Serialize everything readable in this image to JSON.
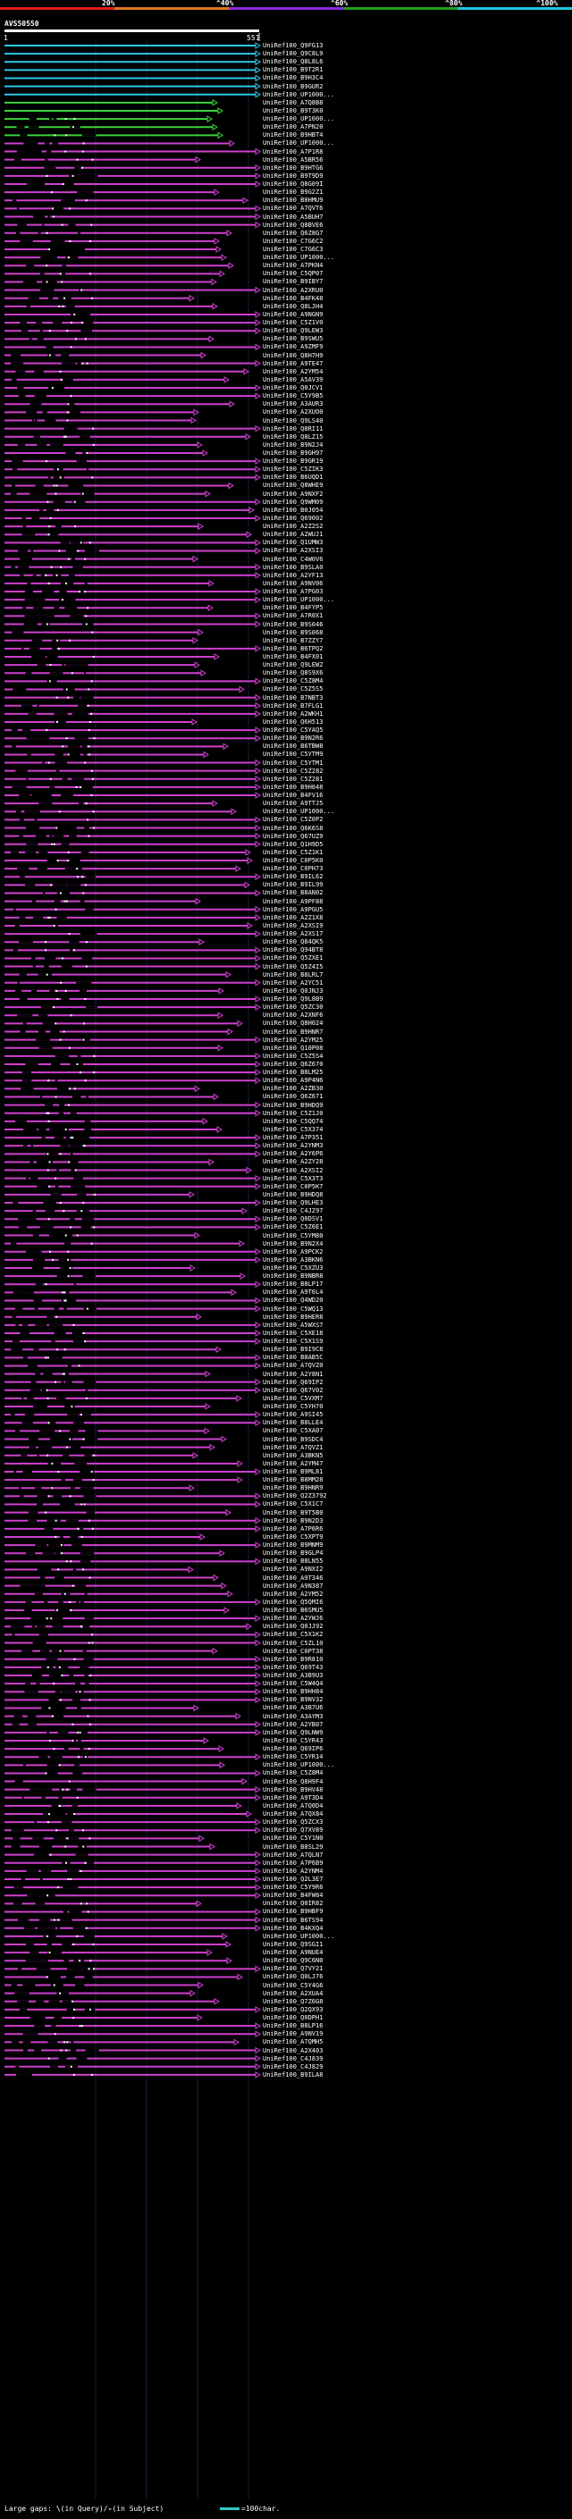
{
  "scale": {
    "ticks": [
      "20%",
      "^40%",
      "^60%",
      "^80%",
      "^100%"
    ],
    "colors": [
      "#e02020",
      "#e07820",
      "#8a2be2",
      "#20a020",
      "#1ec8e0"
    ]
  },
  "query": {
    "label": "AVS50550",
    "start": "1",
    "end": "551"
  },
  "colors": {
    "cyan": "#2ec8e8",
    "green": "#3cd23c",
    "magenta": "#d040d0",
    "dash": "#aaaaaa"
  },
  "hits": [
    "UniRef100_Q9FG13",
    "UniRef100_Q9C8L9",
    "UniRef100_Q8L8L6",
    "UniRef100_B9T2R1",
    "UniRef100_B9H3C4",
    "UniRef100_B9GUR2",
    "UniRef100_UP1000...",
    "UniRef100_A7Q8B8",
    "UniRef100_B9T3K0",
    "UniRef100_UP1000...",
    "UniRef100_A7PN20",
    "UniRef100_B9HBT4",
    "UniRef100_UP1000...",
    "UniRef100_A7P1R8",
    "UniRef100_A5BR56",
    "UniRef100_B9HTG6",
    "UniRef100_B9T9D9",
    "UniRef100_Q8G09I",
    "UniRef100_B9G2Z1",
    "UniRef100_B8HMU9",
    "UniRef100_A7QVT6",
    "UniRef100_A5BUH7",
    "UniRef100_Q8BVE6",
    "UniRef100_Q6Z8G7",
    "UniRef100_C7G6C2",
    "UniRef100_C7G6C3",
    "UniRef100_UP1000...",
    "UniRef100_A7PKN4",
    "UniRef100_C5QP07",
    "UniRef100_B9IBY7",
    "UniRef100_A2XRU0",
    "UniRef100_B4FK48",
    "UniRef100_Q8LJH4",
    "UniRef100_A9NGN9",
    "UniRef100_C5Z1V0",
    "UniRef100_Q9LEW3",
    "UniRef100_B9SWU5",
    "UniRef100_A9ZMF9",
    "UniRef100_Q8H7H9",
    "UniRef100_A9TE47",
    "UniRef100_A2YM54",
    "UniRef100_A5AV39",
    "UniRef100_Q0JCV1",
    "UniRef100_C5Y9B5",
    "UniRef100_A3AUR3",
    "UniRef100_A2XUO0",
    "UniRef100_Q9LS40",
    "UniRef100_Q8RI11",
    "UniRef100_Q8LZ15",
    "UniRef100_B9N2J4",
    "UniRef100_B9GH97",
    "UniRef100_B9GR19",
    "UniRef100_C5ZIK3",
    "UniRef100_B6UQD1",
    "UniRef100_Q8WHE9",
    "UniRef100_A9NXF2",
    "UniRef100_Q9WM09",
    "UniRef100_B0J054",
    "UniRef100_Q69002",
    "UniRef100_A2Z2S2",
    "UniRef100_A2WUJ1",
    "UniRef100_Q1UMW3",
    "UniRef100_A2XSI3",
    "UniRef100_C4W0V6",
    "UniRef100_B9SLA0",
    "UniRef100_A2YF13",
    "UniRef100_A9NV06",
    "UniRef100_A7PG03",
    "UniRef100_UP1000...",
    "UniRef100_B4FYP5",
    "UniRef100_A7R0X1",
    "UniRef100_B9S046",
    "UniRef100_B9S068",
    "UniRef100_B7ZZY7",
    "UniRef100_B6TPQ2",
    "UniRef100_B4FX01",
    "UniRef100_Q9LEW2",
    "UniRef100_Q8S9X6",
    "UniRef100_C5Z8M4",
    "UniRef100_C5Z5S5",
    "UniRef100_B7NBT3",
    "UniRef100_B7FLG1",
    "UniRef100_A2WKH1",
    "UniRef100_Q6H513",
    "UniRef100_C5YAQ5",
    "UniRef100_B9N2R6",
    "UniRef100_B6TBW8",
    "UniRef100_C5YTM9",
    "UniRef100_C5YTM1",
    "UniRef100_C5Z282",
    "UniRef100_C5Z281",
    "UniRef100_B9H048",
    "UniRef100_B4FV16",
    "UniRef100_A9TTJ5",
    "UniRef100_UP1000...",
    "UniRef100_C5Z0P2",
    "UniRef100_Q6K6S8",
    "UniRef100_Q67UZ9",
    "UniRef100_Q1H9D5",
    "UniRef100_C5Z1K1",
    "UniRef100_C0P5K0",
    "UniRef100_C0PH73",
    "UniRef100_B9IL62",
    "UniRef100_B9IL99",
    "UniRef100_B8AN02",
    "UniRef100_A9PF88",
    "UniRef100_A9PGU5",
    "UniRef100_A2Z1X8",
    "UniRef100_A2XSI9",
    "UniRef100_A2XS17",
    "UniRef100_Q84QK5",
    "UniRef100_Q94BT8",
    "UniRef100_Q5ZXE1",
    "UniRef100_Q5Z4I5",
    "UniRef100_B8LRL7",
    "UniRef100_A2YC51",
    "UniRef100_Q0JNJ3",
    "UniRef100_Q9L8B9",
    "UniRef100_Q5ZC30",
    "UniRef100_A2XNF6",
    "UniRef100_Q8H024",
    "UniRef100_B9HNR7",
    "UniRef100_A2YM25",
    "UniRef100_Q10P08",
    "UniRef100_C5Z5S4",
    "UniRef100_Q6Z670",
    "UniRef100_B8LM25",
    "UniRef100_A9P4N6",
    "UniRef100_A2ZB30",
    "UniRef100_Q6Z671",
    "UniRef100_B9HDQ9",
    "UniRef100_C5Z1J0",
    "UniRef100_C5QQ74",
    "UniRef100_C5X374",
    "UniRef100_A7P351",
    "UniRef100_A2YNM3",
    "UniRef100_A2Y6P6",
    "UniRef100_A2ZY28",
    "UniRef100_A2XSI2",
    "UniRef100_C5X3T3",
    "UniRef100_C0P5K7",
    "UniRef100_B9HDQ8",
    "UniRef100_Q9LHE3",
    "UniRef100_C4J297",
    "UniRef100_Q0DSV1",
    "UniRef100_C5Z6E1",
    "UniRef100_C5YM80",
    "UniRef100_B9N2X4",
    "UniRef100_A9PCK2",
    "UniRef100_A3BKN6",
    "UniRef100_C5XZU3",
    "UniRef100_B9NBR8",
    "UniRef100_B8LP17",
    "UniRef100_A9T6L4",
    "UniRef100_Q4WD20",
    "UniRef100_C5WQ13",
    "UniRef100_B9HER8",
    "UniRef100_A5WXS7",
    "UniRef100_C5XE18",
    "UniRef100_C5X1S9",
    "UniRef100_B9I9C8",
    "UniRef100_B8AB5C",
    "UniRef100_A7QVZ0",
    "UniRef100_A2Y8N1",
    "UniRef100_Q69IP2",
    "UniRef100_Q67V02",
    "UniRef100_C5VXM7",
    "UniRef100_C5YH70",
    "UniRef100_A9SI45",
    "UniRef100_B8LLE4",
    "UniRef100_C5XA07",
    "UniRef100_B9SDC4",
    "UniRef100_A7QVZ1",
    "UniRef100_A3BKN5",
    "UniRef100_A2YM47",
    "UniRef100_B9ML81",
    "UniRef100_B8MM28",
    "UniRef100_B9HNR9",
    "UniRef100_Q2Z3792",
    "UniRef100_C5X1C7",
    "UniRef100_B9T5B0",
    "UniRef100_B9N2D3",
    "UniRef100_A7P6R6",
    "UniRef100_C5XPT9",
    "UniRef100_B9MNM9",
    "UniRef100_B9GLP4",
    "UniRef100_B8LN55",
    "UniRef100_A9NXI2",
    "UniRef100_A9T346",
    "UniRef100_A9N387",
    "UniRef100_A2YM52",
    "UniRef100_Q5QMI6",
    "UniRef100_B6SMU5",
    "UniRef100_A2YWJ6",
    "UniRef100_Q0JJ92",
    "UniRef100_C5X1K2",
    "UniRef100_C5ZL10",
    "UniRef100_C0PT38",
    "UniRef100_B9R810",
    "UniRef100_Q69T43",
    "UniRef100_A3B9U3",
    "UniRef100_C5W4Q4",
    "UniRef100_B9HH84",
    "UniRef100_B9NV32",
    "UniRef100_A3B7U6",
    "UniRef100_A3AYM3",
    "UniRef100_A2YB07",
    "UniRef100_Q9LNW9",
    "UniRef100_C5YR43",
    "UniRef100_Q69IP6",
    "UniRef100_C5YR14",
    "UniRef100_UP1000...",
    "UniRef100_C5Z8M4",
    "UniRef100_Q8H9F4",
    "UniRef100_B9HV48",
    "UniRef100_A9T3D4",
    "UniRef100_A7Q0D4",
    "UniRef100_A7QX84",
    "UniRef100_Q5ZCX3",
    "UniRef100_Q7XV89",
    "UniRef100_C5Y1N0",
    "UniRef100_B8SL29",
    "UniRef100_A7QLN7",
    "UniRef100_A7P6B9",
    "UniRef100_A2YNM4",
    "UniRef100_Q2L3E7",
    "UniRef100_C5Y9R6",
    "UniRef100_B4FW84",
    "UniRef100_Q0IR82",
    "UniRef100_B9HBF9",
    "UniRef100_B6TS94",
    "UniRef100_B4KXQ4",
    "UniRef100_UP1000...",
    "UniRef100_Q9SGI1",
    "UniRef100_A9NUE4",
    "UniRef100_Q9C6N0",
    "UniRef100_Q7VY21",
    "UniRef100_Q0LJ76",
    "UniRef100_C5Y4G6",
    "UniRef100_A2XUA4",
    "UniRef100_Q7Z6G8",
    "UniRef100_Q2QX93",
    "UniRef100_Q0DPH1",
    "UniRef100_B8LP16",
    "UniRef100_A9NV19",
    "UniRef100_A7QMH5",
    "UniRef100_A2X403",
    "UniRef100_C4J839",
    "UniRef100_C4J829",
    "UniRef100_B9ILA8"
  ],
  "legend": {
    "text_left": "Large gaps: ",
    "mark_query": "\\",
    "text_query": "(in Query)/",
    "mark_subject": "-",
    "text_subject": "(in Subject)",
    "scale_text": "=100char."
  }
}
